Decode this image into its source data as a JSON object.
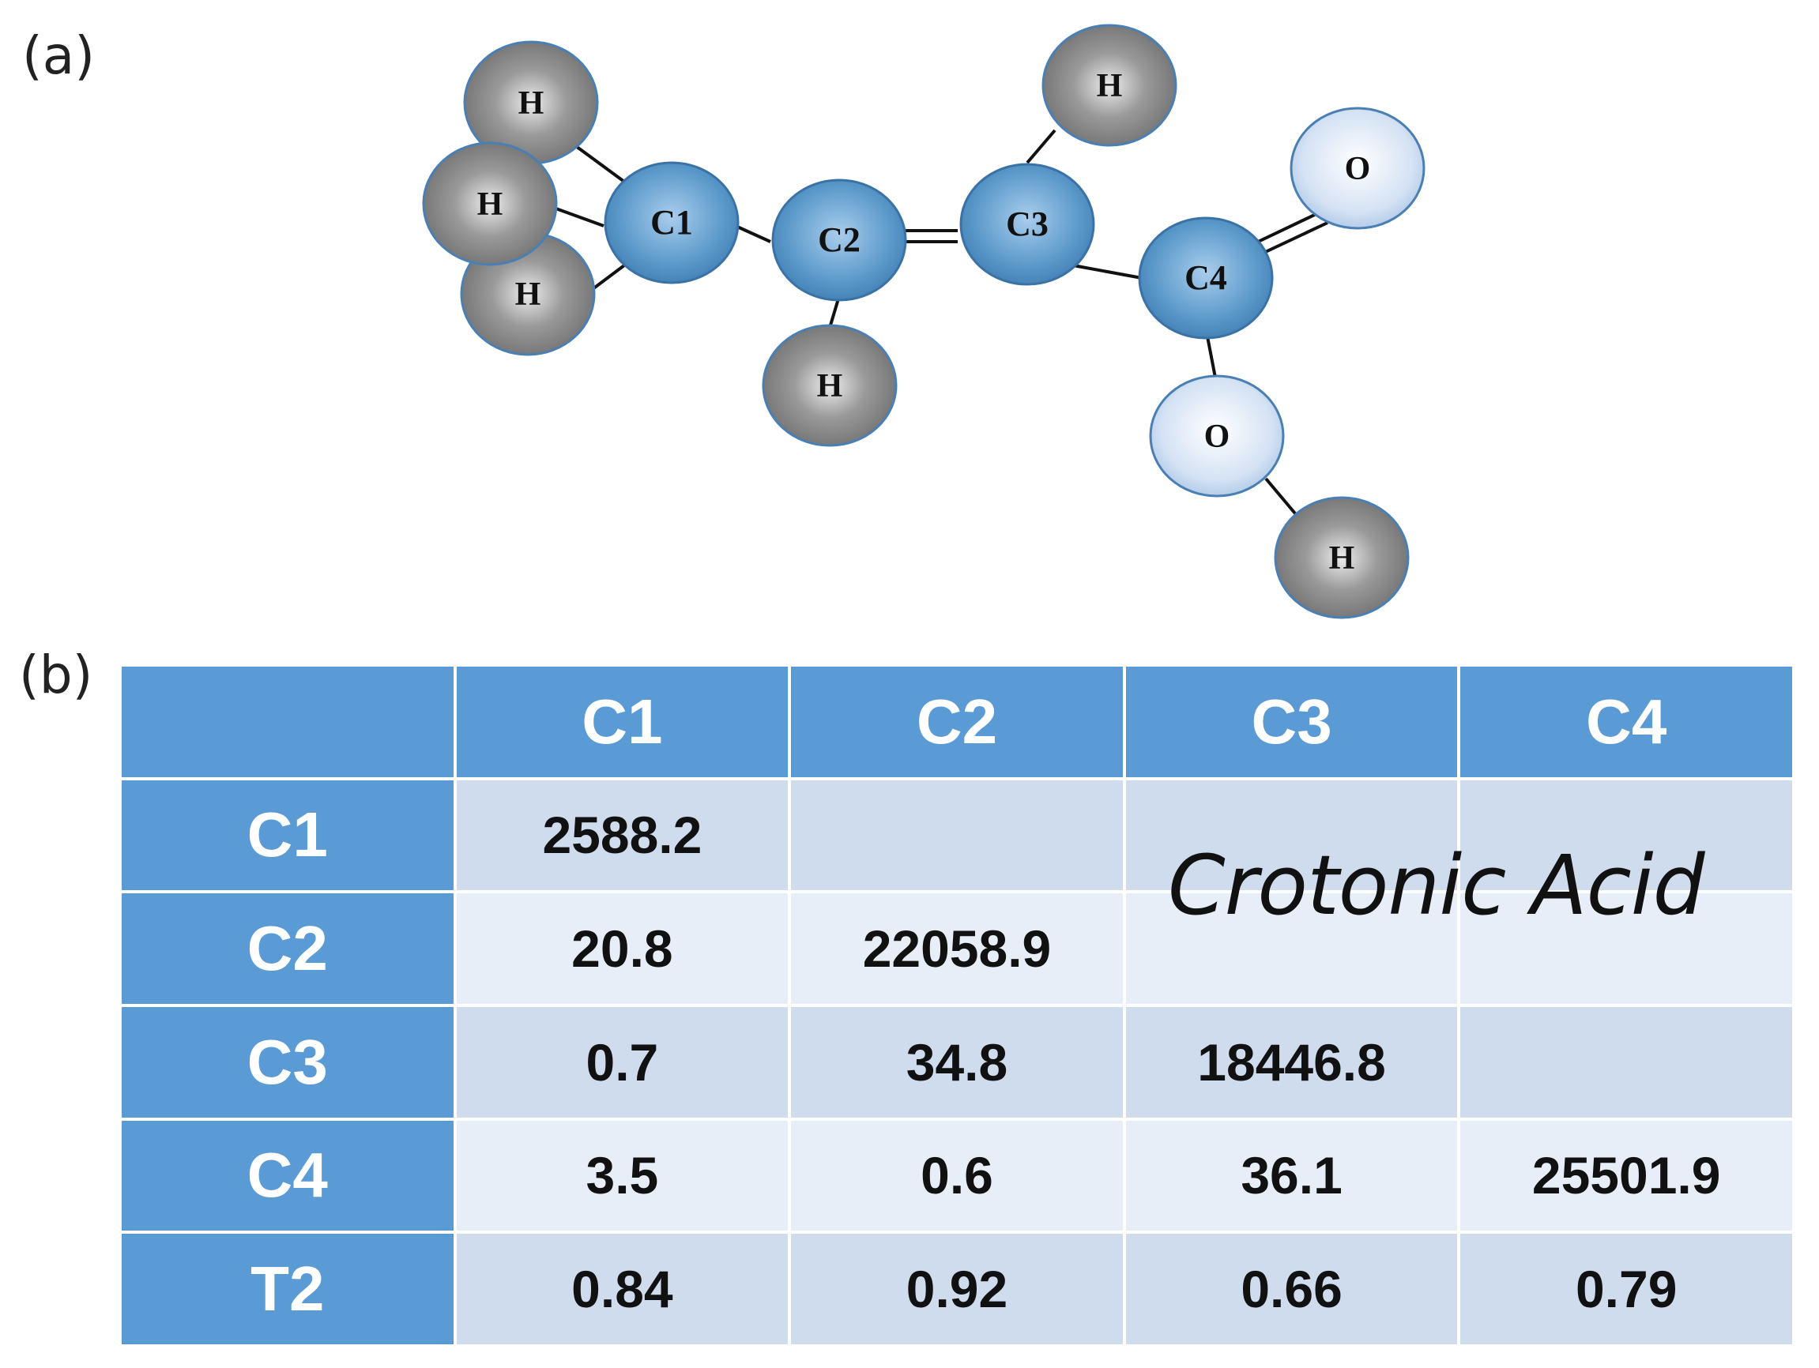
{
  "panels": {
    "a": "(a)",
    "b": "(b)"
  },
  "molecule": {
    "atoms": {
      "h1": "H",
      "h2": "H",
      "h3": "H",
      "c1": "C1",
      "c2": "C2",
      "h4": "H",
      "c3": "C3",
      "h5": "H",
      "c4": "C4",
      "o1": "O",
      "o2": "O",
      "h6": "H"
    },
    "colors": {
      "carbon": "#4a89bd",
      "hydrogen": "#6e6e6e",
      "oxygen": "#bcd0ea",
      "bond": "#111111"
    }
  },
  "table": {
    "column_headers": [
      "",
      "C1",
      "C2",
      "C3",
      "C4"
    ],
    "rows": [
      {
        "label": "C1",
        "cells": [
          "2588.2",
          "",
          "",
          ""
        ]
      },
      {
        "label": "C2",
        "cells": [
          "20.8",
          "22058.9",
          "",
          ""
        ]
      },
      {
        "label": "C3",
        "cells": [
          "0.7",
          "34.8",
          "18446.8",
          ""
        ]
      },
      {
        "label": "C4",
        "cells": [
          "3.5",
          "0.6",
          "36.1",
          "25501.9"
        ]
      },
      {
        "label": "T2",
        "cells": [
          "0.84",
          "0.92",
          "0.66",
          "0.79"
        ]
      }
    ],
    "overlay_label": "Crotonic Acid",
    "colors": {
      "header": "#5b9bd5",
      "row_dark": "#cfdcee",
      "row_light": "#e8eef7"
    }
  }
}
